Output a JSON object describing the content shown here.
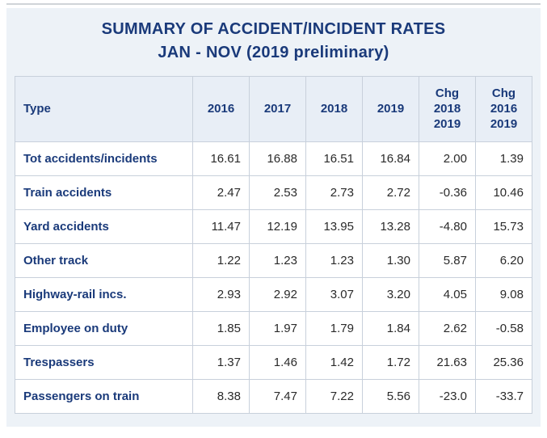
{
  "title_line1": "SUMMARY OF ACCIDENT/INCIDENT RATES",
  "title_line2": "JAN - NOV (2019 preliminary)",
  "columns": [
    "Type",
    "2016",
    "2017",
    "2018",
    "2019",
    "Chg 2018 2019",
    "Chg 2016 2019"
  ],
  "col_widths": [
    "220px",
    "66px",
    "66px",
    "66px",
    "66px",
    "66px",
    "66px"
  ],
  "header_break": {
    "4": [
      "Chg",
      "2018",
      "2019"
    ],
    "5": [
      "Chg",
      "2016",
      "2019"
    ]
  },
  "rows": [
    {
      "label": "Tot accidents/incidents",
      "v": [
        "16.61",
        "16.88",
        "16.51",
        "16.84",
        "2.00",
        "1.39"
      ]
    },
    {
      "label": "Train accidents",
      "v": [
        "2.47",
        "2.53",
        "2.73",
        "2.72",
        "-0.36",
        "10.46"
      ]
    },
    {
      "label": "Yard accidents",
      "v": [
        "11.47",
        "12.19",
        "13.95",
        "13.28",
        "-4.80",
        "15.73"
      ]
    },
    {
      "label": "Other track",
      "v": [
        "1.22",
        "1.23",
        "1.23",
        "1.30",
        "5.87",
        "6.20"
      ]
    },
    {
      "label": "Highway-rail incs.",
      "v": [
        "2.93",
        "2.92",
        "3.07",
        "3.20",
        "4.05",
        "9.08"
      ]
    },
    {
      "label": "Employee on duty",
      "v": [
        "1.85",
        "1.97",
        "1.79",
        "1.84",
        "2.62",
        "-0.58"
      ]
    },
    {
      "label": "Trespassers",
      "v": [
        "1.37",
        "1.46",
        "1.42",
        "1.72",
        "21.63",
        "25.36"
      ]
    },
    {
      "label": "Passengers on train",
      "v": [
        "8.38",
        "7.47",
        "7.22",
        "5.56",
        "-23.0",
        "-33.7"
      ]
    }
  ],
  "colors": {
    "heading_text": "#1a3a7a",
    "panel_bg": "#edf2f7",
    "header_bg": "#e8eef6",
    "border": "#c8d0db",
    "body_text": "#2a2a2a",
    "top_rule": "#d0d4d8"
  },
  "font_sizes": {
    "title": 20,
    "th": 15,
    "td": 15
  }
}
